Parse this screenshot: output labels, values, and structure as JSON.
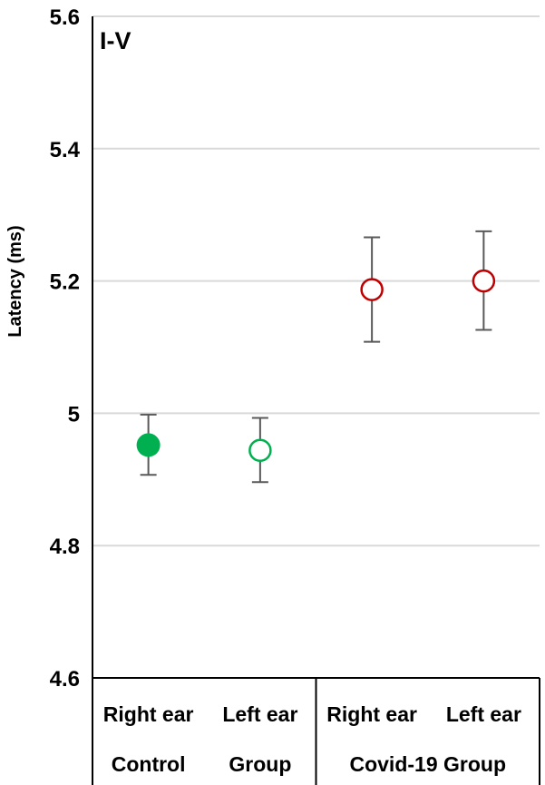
{
  "chart_data": {
    "type": "scatter",
    "panel_label": "I-V",
    "ylabel": "Latency (ms)",
    "ylim": [
      4.6,
      5.6
    ],
    "yticks": [
      4.6,
      4.8,
      5.0,
      5.2,
      5.4,
      5.6
    ],
    "ytick_labels": [
      "4.6",
      "4.8",
      "5",
      "5.2",
      "5.4",
      "5.6"
    ],
    "grid": true,
    "categories": [
      "Right ear",
      "Left ear",
      "Right ear",
      "Left ear"
    ],
    "groups": [
      {
        "label": "Control",
        "label2": "Group",
        "span": [
          0,
          1
        ]
      },
      {
        "label": "Covid-19 Group",
        "span": [
          2,
          3
        ]
      }
    ],
    "points": [
      {
        "category": "Right ear",
        "group": "Control Group",
        "y": 4.952,
        "err_low": 4.907,
        "err_high": 4.998,
        "color": "#00b050",
        "filled": true
      },
      {
        "category": "Left ear",
        "group": "Control Group",
        "y": 4.944,
        "err_low": 4.896,
        "err_high": 4.993,
        "color": "#00b050",
        "filled": false
      },
      {
        "category": "Right ear",
        "group": "Covid-19 Group",
        "y": 5.187,
        "err_low": 5.108,
        "err_high": 5.266,
        "color": "#c00000",
        "filled": false
      },
      {
        "category": "Left ear",
        "group": "Covid-19 Group",
        "y": 5.2,
        "err_low": 5.126,
        "err_high": 5.275,
        "color": "#c00000",
        "filled": false
      }
    ],
    "colors": {
      "grid": "#d9d9d9",
      "axis": "#000000",
      "errorbar": "#595959"
    }
  }
}
